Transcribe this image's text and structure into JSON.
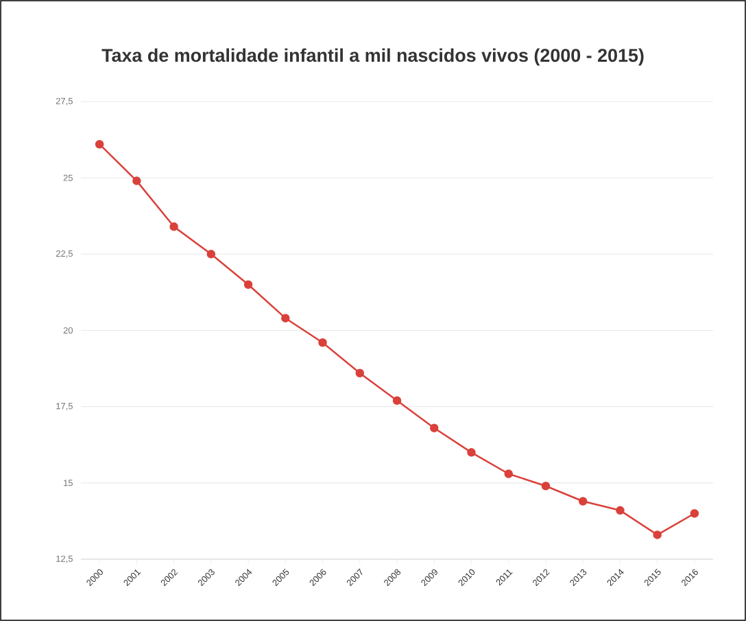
{
  "chart_data": {
    "type": "line",
    "title": "Taxa de mortalidade infantil a mil nascidos vivos (2000 - 2015)",
    "categories": [
      "2000",
      "2001",
      "2002",
      "2003",
      "2004",
      "2005",
      "2006",
      "2007",
      "2008",
      "2009",
      "2010",
      "2011",
      "2012",
      "2013",
      "2014",
      "2015",
      "2016"
    ],
    "series": [
      {
        "color": "#d9413a",
        "values": [
          26.1,
          24.9,
          23.4,
          22.5,
          21.5,
          20.4,
          19.6,
          18.6,
          17.7,
          16.8,
          16.0,
          15.3,
          14.9,
          14.4,
          14.1,
          13.3,
          14.0
        ]
      }
    ],
    "ylim": [
      12.5,
      27.5
    ],
    "yticks": [
      {
        "value": 12.5,
        "label": "12,5"
      },
      {
        "value": 15,
        "label": "15"
      },
      {
        "value": 17.5,
        "label": "17,5"
      },
      {
        "value": 20,
        "label": "20"
      },
      {
        "value": 22.5,
        "label": "22,5"
      },
      {
        "value": 25,
        "label": "25"
      },
      {
        "value": 27.5,
        "label": "27,5"
      }
    ],
    "grid": "y",
    "marker": "circle",
    "line_style": "solid"
  }
}
